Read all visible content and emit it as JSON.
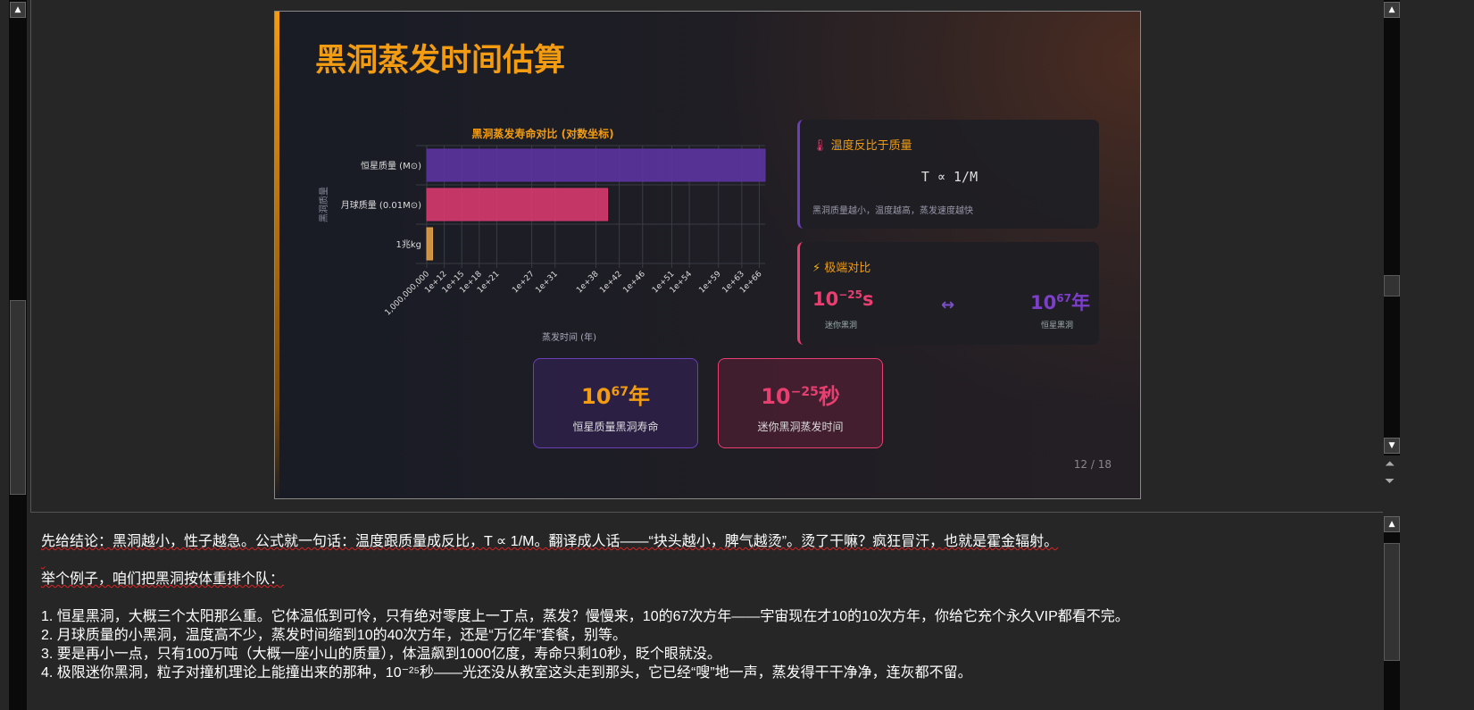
{
  "slide": {
    "title": "黑洞蒸发时间估算",
    "page_indicator": "12 / 18",
    "card_temperature": {
      "icon": "thermometer-icon",
      "title": "温度反比于质量",
      "formula": "T ∝ 1/M",
      "description": "黑洞质量越小，温度越高，蒸发速度越快"
    },
    "card_extreme": {
      "icon": "lightning-icon",
      "title": "极端对比",
      "left_base": "10",
      "left_exp": "−25",
      "left_unit": "s",
      "left_label": "迷你黑洞",
      "arrow": "↔",
      "right_base": "10",
      "right_exp": "67",
      "right_unit": "年",
      "right_label": "恒星黑洞"
    },
    "stat1": {
      "base": "10",
      "exp": "67",
      "unit": "年",
      "label": "恒星质量黑洞寿命"
    },
    "stat2": {
      "base": "10",
      "exp": "−25",
      "unit": "秒",
      "label": "迷你黑洞蒸发时间"
    }
  },
  "colors": {
    "accent": "#f39c12",
    "purple": "#6b3fb8",
    "pink": "#e83e70",
    "orange": "#e0a04a"
  },
  "chart_data": {
    "type": "bar",
    "orientation": "horizontal",
    "title": "黑洞蒸发寿命对比 (对数坐标)",
    "xlabel": "蒸发时间 (年)",
    "ylabel": "黑洞质量",
    "x_scale": "log",
    "xlim": [
      1000000000.0,
      1e+67
    ],
    "grid": true,
    "categories": [
      "恒星质量 (M⊙)",
      "月球质量 (0.01M⊙)",
      "1兆kg"
    ],
    "values": [
      1e+67,
      1e+40,
      10000000000.0
    ],
    "bar_colors": [
      "#5b34a0",
      "#d63a6e",
      "#e0a04a"
    ],
    "tick_values": [
      1000000000.0,
      1000000000000.0,
      1000000000000000.0,
      1e+18,
      1e+21,
      1e+27,
      1e+31,
      1e+38,
      1e+42,
      1e+46,
      1e+51,
      1e+54,
      1e+59,
      1e+63,
      1e+66
    ],
    "tick_labels": [
      "1,000,000,000",
      "1e+12",
      "1e+15",
      "1e+18",
      "1e+21",
      "1e+27",
      "1e+31",
      "1e+38",
      "1e+42",
      "1e+46",
      "1e+51",
      "1e+54",
      "1e+59",
      "1e+63",
      "1e+66"
    ]
  },
  "notes": {
    "lines": [
      "先给结论：黑洞越小，性子越急。公式就一句话：温度跟质量成反比，T ∝ 1/M。翻译成人话——“块头越小，脾气越烫”。烫了干嘛？疯狂冒汗，也就是霍金辐射。",
      "",
      "举个例子，咱们把黑洞按体重排个队：",
      "",
      "1. 恒星黑洞，大概三个太阳那么重。它体温低到可怜，只有绝对零度上一丁点，蒸发？慢慢来，10的67次方年——宇宙现在才10的10次方年，你给它充个永久VIP都看不完。",
      "2. 月球质量的小黑洞，温度高不少，蒸发时间缩到10的40次方年，还是“万亿年”套餐，别等。",
      "3. 要是再小一点，只有100万吨（大概一座小山的质量），体温飙到1000亿度，寿命只剩10秒，眨个眼就没。",
      "4. 极限迷你黑洞，粒子对撞机理论上能撞出来的那种，10⁻²⁵秒——光还没从教室这头走到那头，它已经“嗖”地一声，蒸发得干干净净，连灰都不留。"
    ]
  }
}
